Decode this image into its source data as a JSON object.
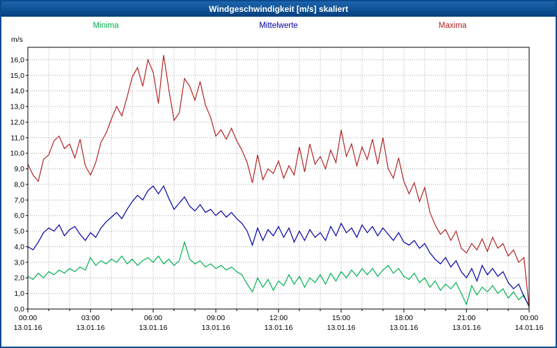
{
  "window": {
    "title": "Windgeschwindigkeit [m/s] skaliert"
  },
  "chart_data": {
    "type": "line",
    "title": "Windgeschwindigkeit [m/s] skaliert",
    "grid": true,
    "legend_position": "top",
    "y_axis": {
      "unit_label": "m/s",
      "min": 0,
      "max": 16,
      "step": 1,
      "tick_labels": [
        "0,0",
        "1,0",
        "2,0",
        "3,0",
        "4,0",
        "5,0",
        "6,0",
        "7,0",
        "8,0",
        "9,0",
        "10,0",
        "11,0",
        "12,0",
        "13,0",
        "14,0",
        "15,0",
        "16,0"
      ]
    },
    "x_axis": {
      "hours_span": 24,
      "minor_tick_every_hours": 1,
      "major_tick_every_hours": 3,
      "tick_labels": [
        {
          "time": "00:00",
          "date": "13.01.16"
        },
        {
          "time": "03:00",
          "date": "13.01.16"
        },
        {
          "time": "06:00",
          "date": "13.01.16"
        },
        {
          "time": "09:00",
          "date": "13.01.16"
        },
        {
          "time": "12:00",
          "date": "13.01.16"
        },
        {
          "time": "15:00",
          "date": "13.01.16"
        },
        {
          "time": "18:00",
          "date": "13.01.16"
        },
        {
          "time": "21:00",
          "date": "13.01.16"
        },
        {
          "time": "00:00",
          "date": "14.01.16"
        }
      ]
    },
    "series": [
      {
        "name": "Minima",
        "color": "#00b050",
        "values": [
          2.1,
          1.9,
          2.3,
          2.0,
          2.4,
          2.2,
          2.5,
          2.3,
          2.6,
          2.4,
          2.7,
          2.5,
          3.3,
          2.8,
          3.1,
          2.9,
          3.2,
          3.0,
          3.4,
          2.9,
          3.2,
          2.8,
          3.1,
          3.3,
          3.0,
          3.4,
          2.9,
          3.2,
          2.8,
          3.1,
          4.3,
          3.2,
          2.9,
          3.1,
          2.7,
          2.9,
          2.6,
          2.8,
          2.5,
          2.7,
          2.4,
          2.2,
          1.6,
          1.1,
          2.0,
          1.4,
          1.9,
          1.2,
          1.8,
          1.5,
          2.2,
          1.6,
          2.1,
          1.4,
          2.0,
          1.7,
          2.2,
          1.6,
          2.3,
          1.8,
          2.4,
          2.0,
          2.5,
          2.1,
          2.6,
          2.2,
          2.6,
          2.1,
          2.5,
          2.8,
          2.3,
          2.6,
          2.1,
          1.9,
          2.3,
          1.7,
          2.0,
          1.4,
          1.8,
          1.2,
          1.6,
          1.3,
          1.7,
          1.0,
          0.3,
          1.5,
          0.9,
          1.4,
          1.1,
          1.5,
          1.0,
          1.3,
          0.7,
          1.1,
          0.6,
          0.9,
          0.1
        ]
      },
      {
        "name": "Mittelwerte",
        "color": "#0000a0",
        "values": [
          4.0,
          3.8,
          4.3,
          4.9,
          5.2,
          5.0,
          5.4,
          4.7,
          5.1,
          5.3,
          4.8,
          4.4,
          4.9,
          4.6,
          5.2,
          5.6,
          5.9,
          6.2,
          5.8,
          6.4,
          6.9,
          7.3,
          7.0,
          7.6,
          7.9,
          7.4,
          7.9,
          7.1,
          6.4,
          6.8,
          7.2,
          6.6,
          6.3,
          6.7,
          6.2,
          6.4,
          6.0,
          6.3,
          5.9,
          6.2,
          5.8,
          5.5,
          5.0,
          4.1,
          5.2,
          4.4,
          5.1,
          4.7,
          5.3,
          4.6,
          5.2,
          4.3,
          5.0,
          4.4,
          5.1,
          4.6,
          4.9,
          4.4,
          5.3,
          4.7,
          5.5,
          4.9,
          5.2,
          4.6,
          5.4,
          4.9,
          5.3,
          4.7,
          5.2,
          4.8,
          4.4,
          4.9,
          4.3,
          4.1,
          4.4,
          3.9,
          4.2,
          3.6,
          3.2,
          2.9,
          3.3,
          2.7,
          3.1,
          2.4,
          2.0,
          2.6,
          1.8,
          2.8,
          2.2,
          2.6,
          2.1,
          2.4,
          1.7,
          1.3,
          1.6,
          0.8,
          0.2
        ]
      },
      {
        "name": "Maxima",
        "color": "#b22222",
        "values": [
          9.3,
          8.6,
          8.2,
          9.6,
          9.9,
          10.8,
          11.1,
          10.3,
          10.6,
          9.7,
          10.9,
          9.2,
          8.6,
          9.4,
          10.7,
          11.3,
          12.2,
          13.0,
          12.4,
          13.6,
          14.9,
          15.5,
          14.3,
          16.0,
          15.2,
          13.2,
          16.3,
          14.1,
          12.1,
          12.6,
          14.8,
          14.3,
          13.4,
          14.6,
          13.1,
          12.3,
          11.1,
          11.5,
          10.9,
          11.6,
          10.8,
          10.2,
          9.4,
          8.1,
          9.9,
          8.3,
          9.0,
          8.7,
          9.5,
          8.4,
          9.2,
          8.6,
          10.4,
          8.8,
          10.6,
          9.3,
          9.8,
          9.0,
          10.2,
          9.4,
          11.5,
          9.8,
          10.6,
          9.2,
          10.4,
          9.6,
          10.9,
          9.3,
          11.0,
          9.0,
          8.4,
          9.7,
          8.2,
          7.4,
          8.1,
          6.9,
          7.8,
          6.2,
          5.4,
          4.8,
          5.1,
          4.4,
          5.0,
          3.9,
          3.6,
          4.2,
          3.8,
          4.5,
          3.7,
          4.6,
          3.9,
          4.2,
          3.4,
          3.8,
          3.0,
          3.3,
          0.1
        ]
      }
    ]
  }
}
